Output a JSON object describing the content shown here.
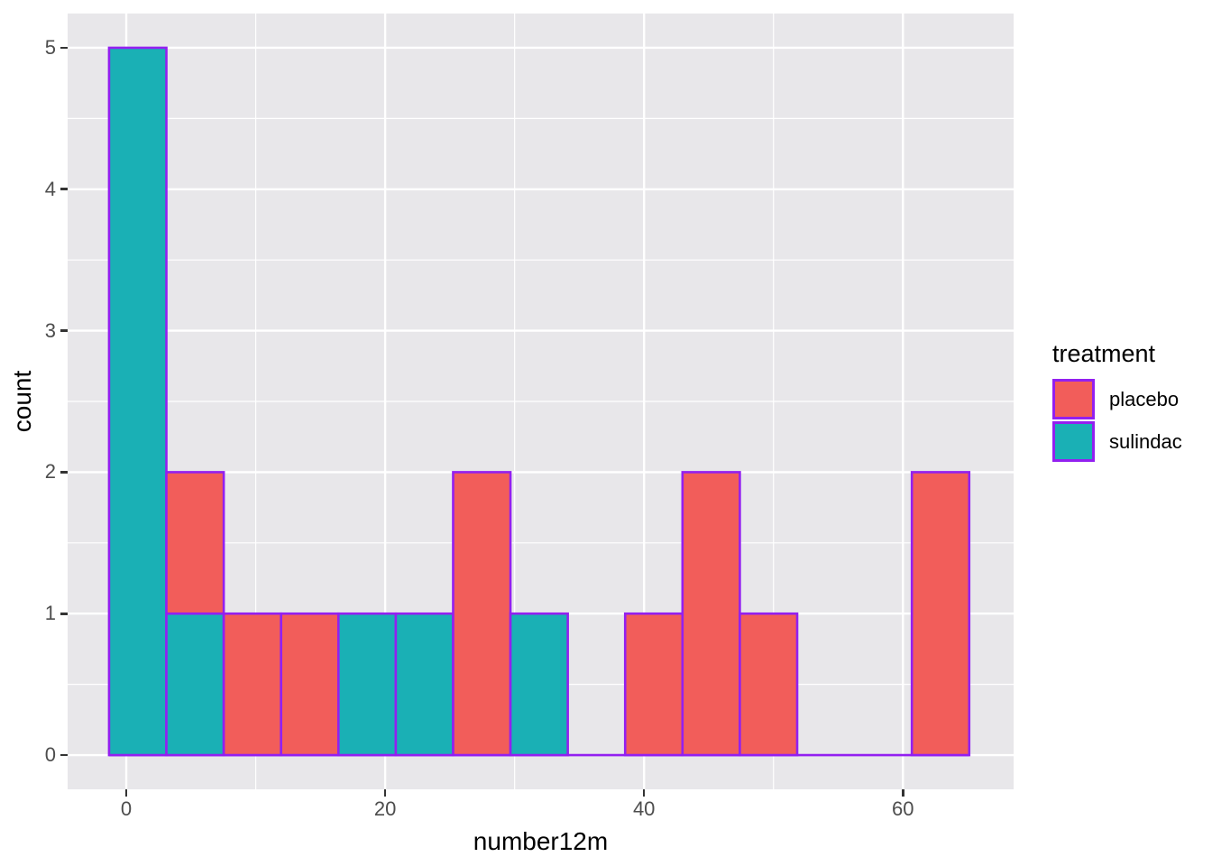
{
  "chart_data": {
    "type": "bar",
    "subtype": "stacked-histogram",
    "title": "",
    "xlabel": "number12m",
    "ylabel": "count",
    "x_ticks": [
      0,
      20,
      40,
      60
    ],
    "x_minor_ticks": [
      10,
      30,
      50
    ],
    "y_ticks": [
      0,
      1,
      2,
      3,
      4,
      5
    ],
    "y_minor_ticks": [
      0.5,
      1.5,
      2.5,
      3.5,
      4.5
    ],
    "xlim": [
      -4.53,
      68.55
    ],
    "ylim": [
      -0.242,
      5.242
    ],
    "bin_width": 4.43,
    "grid": "on",
    "legend": {
      "title": "treatment",
      "position": "right",
      "entries": [
        {
          "label": "placebo",
          "color": "#F25D5A"
        },
        {
          "label": "sulindac",
          "color": "#1AB0B5"
        }
      ]
    },
    "colors": {
      "placebo": "#F25D5A",
      "sulindac": "#1AB0B5",
      "outline": "#9320F0",
      "panel_bg": "#E8E7EA",
      "gridline": "#FFFFFF",
      "tick": "#333333",
      "tick_label": "#4D4D4D",
      "axis_title": "#000000"
    },
    "bins": [
      {
        "x0": -1.33,
        "x1": 3.1,
        "segments": [
          {
            "series": "sulindac",
            "count": 5
          }
        ]
      },
      {
        "x0": 3.1,
        "x1": 7.53,
        "segments": [
          {
            "series": "sulindac",
            "count": 1
          },
          {
            "series": "placebo",
            "count": 1
          }
        ]
      },
      {
        "x0": 7.53,
        "x1": 11.96,
        "segments": [
          {
            "series": "placebo",
            "count": 1
          }
        ]
      },
      {
        "x0": 11.96,
        "x1": 16.39,
        "segments": [
          {
            "series": "placebo",
            "count": 1
          }
        ]
      },
      {
        "x0": 16.39,
        "x1": 20.82,
        "segments": [
          {
            "series": "sulindac",
            "count": 1
          }
        ]
      },
      {
        "x0": 20.82,
        "x1": 25.25,
        "segments": [
          {
            "series": "sulindac",
            "count": 1
          }
        ]
      },
      {
        "x0": 25.25,
        "x1": 29.68,
        "segments": [
          {
            "series": "placebo",
            "count": 2
          }
        ]
      },
      {
        "x0": 29.68,
        "x1": 34.11,
        "segments": [
          {
            "series": "sulindac",
            "count": 1
          }
        ]
      },
      {
        "x0": 34.11,
        "x1": 38.54,
        "segments": []
      },
      {
        "x0": 38.54,
        "x1": 42.97,
        "segments": [
          {
            "series": "placebo",
            "count": 1
          }
        ]
      },
      {
        "x0": 42.97,
        "x1": 47.4,
        "segments": [
          {
            "series": "placebo",
            "count": 2
          }
        ]
      },
      {
        "x0": 47.4,
        "x1": 51.83,
        "segments": [
          {
            "series": "placebo",
            "count": 1
          }
        ]
      },
      {
        "x0": 51.83,
        "x1": 56.26,
        "segments": []
      },
      {
        "x0": 56.26,
        "x1": 60.69,
        "segments": []
      },
      {
        "x0": 60.69,
        "x1": 65.12,
        "segments": [
          {
            "series": "placebo",
            "count": 2
          }
        ]
      }
    ]
  }
}
